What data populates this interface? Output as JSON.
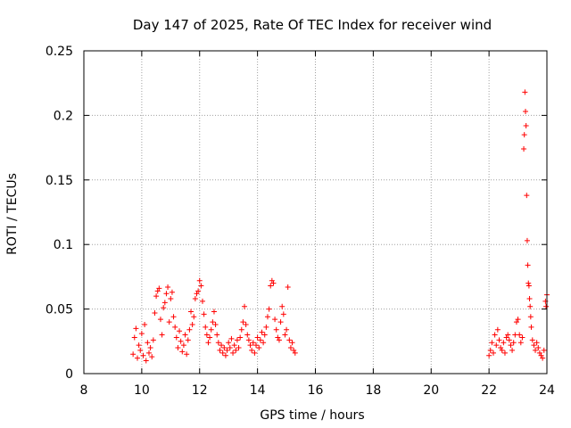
{
  "chart_data": {
    "type": "scatter",
    "title": "Day 147 of 2025, Rate Of TEC Index for receiver wind",
    "xlabel": "GPS time / hours",
    "ylabel": "ROTI / TECUs",
    "xlim": [
      8,
      24
    ],
    "ylim": [
      0,
      0.25
    ],
    "xticks": [
      8,
      10,
      12,
      14,
      16,
      18,
      20,
      22,
      24
    ],
    "yticks": [
      0,
      0.05,
      0.1,
      0.15,
      0.2,
      0.25
    ],
    "xtick_labels": [
      "8",
      "10",
      "12",
      "14",
      "16",
      "18",
      "20",
      "22",
      "24"
    ],
    "ytick_labels": [
      "0",
      "0.05",
      "0.1",
      "0.15",
      "0.2",
      "0.25"
    ],
    "grid": true,
    "marker": "+",
    "series": [
      {
        "name": "ROTI",
        "color": "#ff0000",
        "points": [
          [
            9.7,
            0.015
          ],
          [
            9.75,
            0.028
          ],
          [
            9.8,
            0.035
          ],
          [
            9.85,
            0.012
          ],
          [
            9.9,
            0.022
          ],
          [
            9.95,
            0.018
          ],
          [
            10.0,
            0.031
          ],
          [
            10.05,
            0.014
          ],
          [
            10.1,
            0.038
          ],
          [
            10.15,
            0.01
          ],
          [
            10.2,
            0.024
          ],
          [
            10.25,
            0.016
          ],
          [
            10.3,
            0.02
          ],
          [
            10.35,
            0.013
          ],
          [
            10.4,
            0.026
          ],
          [
            10.45,
            0.047
          ],
          [
            10.5,
            0.06
          ],
          [
            10.55,
            0.064
          ],
          [
            10.6,
            0.066
          ],
          [
            10.65,
            0.042
          ],
          [
            10.7,
            0.03
          ],
          [
            10.75,
            0.051
          ],
          [
            10.8,
            0.055
          ],
          [
            10.85,
            0.062
          ],
          [
            10.9,
            0.067
          ],
          [
            10.95,
            0.04
          ],
          [
            11.0,
            0.058
          ],
          [
            11.05,
            0.063
          ],
          [
            11.1,
            0.044
          ],
          [
            11.15,
            0.036
          ],
          [
            11.2,
            0.028
          ],
          [
            11.25,
            0.02
          ],
          [
            11.3,
            0.033
          ],
          [
            11.35,
            0.025
          ],
          [
            11.4,
            0.017
          ],
          [
            11.45,
            0.022
          ],
          [
            11.5,
            0.03
          ],
          [
            11.55,
            0.015
          ],
          [
            11.6,
            0.026
          ],
          [
            11.65,
            0.034
          ],
          [
            11.7,
            0.048
          ],
          [
            11.75,
            0.038
          ],
          [
            11.8,
            0.044
          ],
          [
            11.85,
            0.058
          ],
          [
            11.9,
            0.062
          ],
          [
            11.95,
            0.064
          ],
          [
            12.0,
            0.072
          ],
          [
            12.05,
            0.068
          ],
          [
            12.1,
            0.056
          ],
          [
            12.15,
            0.046
          ],
          [
            12.2,
            0.036
          ],
          [
            12.25,
            0.03
          ],
          [
            12.3,
            0.024
          ],
          [
            12.35,
            0.028
          ],
          [
            12.4,
            0.034
          ],
          [
            12.45,
            0.04
          ],
          [
            12.5,
            0.048
          ],
          [
            12.55,
            0.038
          ],
          [
            12.6,
            0.03
          ],
          [
            12.65,
            0.024
          ],
          [
            12.7,
            0.018
          ],
          [
            12.75,
            0.022
          ],
          [
            12.8,
            0.016
          ],
          [
            12.85,
            0.02
          ],
          [
            12.9,
            0.014
          ],
          [
            12.95,
            0.018
          ],
          [
            13.0,
            0.024
          ],
          [
            13.05,
            0.02
          ],
          [
            13.1,
            0.027
          ],
          [
            13.15,
            0.016
          ],
          [
            13.2,
            0.022
          ],
          [
            13.25,
            0.018
          ],
          [
            13.3,
            0.026
          ],
          [
            13.35,
            0.02
          ],
          [
            13.4,
            0.028
          ],
          [
            13.45,
            0.034
          ],
          [
            13.5,
            0.04
          ],
          [
            13.55,
            0.052
          ],
          [
            13.6,
            0.038
          ],
          [
            13.65,
            0.03
          ],
          [
            13.7,
            0.026
          ],
          [
            13.75,
            0.022
          ],
          [
            13.8,
            0.018
          ],
          [
            13.85,
            0.024
          ],
          [
            13.9,
            0.016
          ],
          [
            13.95,
            0.022
          ],
          [
            14.0,
            0.028
          ],
          [
            14.05,
            0.02
          ],
          [
            14.1,
            0.026
          ],
          [
            14.15,
            0.032
          ],
          [
            14.2,
            0.024
          ],
          [
            14.25,
            0.03
          ],
          [
            14.3,
            0.036
          ],
          [
            14.35,
            0.044
          ],
          [
            14.4,
            0.05
          ],
          [
            14.45,
            0.068
          ],
          [
            14.5,
            0.072
          ],
          [
            14.55,
            0.07
          ],
          [
            14.6,
            0.042
          ],
          [
            14.65,
            0.034
          ],
          [
            14.7,
            0.028
          ],
          [
            14.75,
            0.026
          ],
          [
            14.8,
            0.04
          ],
          [
            14.85,
            0.052
          ],
          [
            14.9,
            0.046
          ],
          [
            14.95,
            0.03
          ],
          [
            15.0,
            0.034
          ],
          [
            15.05,
            0.067
          ],
          [
            15.1,
            0.026
          ],
          [
            15.15,
            0.02
          ],
          [
            15.2,
            0.024
          ],
          [
            15.25,
            0.018
          ],
          [
            15.3,
            0.016
          ],
          [
            22.0,
            0.014
          ],
          [
            22.05,
            0.018
          ],
          [
            22.1,
            0.024
          ],
          [
            22.15,
            0.016
          ],
          [
            22.2,
            0.03
          ],
          [
            22.25,
            0.022
          ],
          [
            22.3,
            0.034
          ],
          [
            22.35,
            0.026
          ],
          [
            22.4,
            0.02
          ],
          [
            22.45,
            0.018
          ],
          [
            22.5,
            0.024
          ],
          [
            22.55,
            0.016
          ],
          [
            22.6,
            0.028
          ],
          [
            22.65,
            0.03
          ],
          [
            22.7,
            0.026
          ],
          [
            22.75,
            0.022
          ],
          [
            22.8,
            0.018
          ],
          [
            22.85,
            0.024
          ],
          [
            22.9,
            0.03
          ],
          [
            22.95,
            0.04
          ],
          [
            23.0,
            0.042
          ],
          [
            23.05,
            0.03
          ],
          [
            23.1,
            0.024
          ],
          [
            23.15,
            0.028
          ],
          [
            23.2,
            0.174
          ],
          [
            23.22,
            0.185
          ],
          [
            23.24,
            0.218
          ],
          [
            23.26,
            0.203
          ],
          [
            23.28,
            0.192
          ],
          [
            23.3,
            0.138
          ],
          [
            23.32,
            0.103
          ],
          [
            23.34,
            0.084
          ],
          [
            23.36,
            0.07
          ],
          [
            23.38,
            0.068
          ],
          [
            23.4,
            0.058
          ],
          [
            23.42,
            0.052
          ],
          [
            23.44,
            0.044
          ],
          [
            23.46,
            0.036
          ],
          [
            23.5,
            0.026
          ],
          [
            23.55,
            0.022
          ],
          [
            23.6,
            0.018
          ],
          [
            23.65,
            0.024
          ],
          [
            23.7,
            0.02
          ],
          [
            23.75,
            0.016
          ],
          [
            23.8,
            0.014
          ],
          [
            23.85,
            0.012
          ],
          [
            23.9,
            0.018
          ],
          [
            23.95,
            0.056
          ],
          [
            23.97,
            0.052
          ],
          [
            24.0,
            0.061
          ]
        ]
      }
    ]
  }
}
